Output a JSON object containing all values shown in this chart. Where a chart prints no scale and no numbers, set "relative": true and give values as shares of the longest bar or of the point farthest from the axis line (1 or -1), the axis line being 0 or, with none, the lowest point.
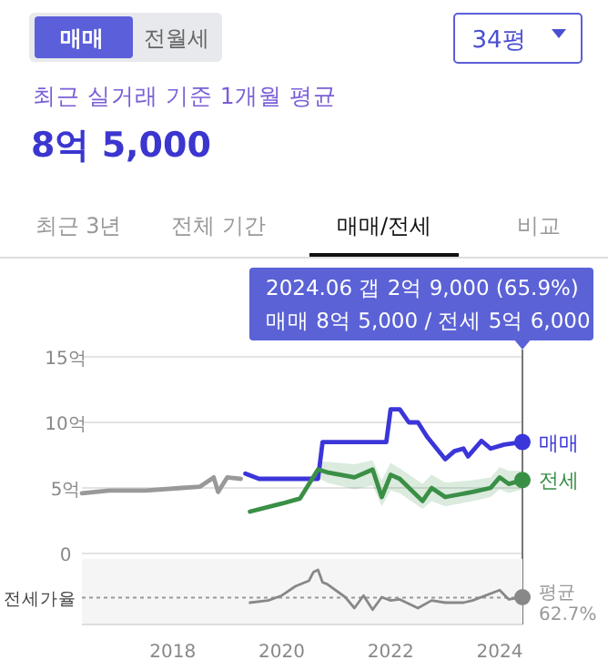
{
  "chart_data": [
    {
      "type": "line",
      "title": "최근 실거래 기준 1개월 평균",
      "subtitle": "8억 5,000",
      "annotations": [
        "매매",
        "전월세",
        "34평",
        "최근 3년",
        "전체 기간",
        "매매/전세",
        "비교",
        "2024.06  갭 2억 9,000 (65.9%)",
        "매매 8억 5,000 / 전세 5억 6,000"
      ],
      "xlim": [
        "2016-05",
        "2024-06"
      ],
      "ylim": [
        0,
        15
      ],
      "yticks": [
        {
          "value": 0,
          "label": "0"
        },
        {
          "value": 5,
          "label": "5억"
        },
        {
          "value": 10,
          "label": "10억"
        },
        {
          "value": 15,
          "label": "15억"
        }
      ],
      "grid": "y",
      "tick_labels": "y",
      "ref_lines": [
        {
          "axis": "x",
          "value": "2024-06",
          "color": "#777777"
        }
      ],
      "series": [
        {
          "color": "#999999",
          "x": [
            "2016-05",
            "2016-11",
            "2017-07",
            "2018-03",
            "2018-07",
            "2018-10",
            "2018-11",
            "2019-01",
            "2019-04"
          ],
          "values": [
            4.6,
            4.8,
            4.8,
            5.0,
            5.1,
            5.8,
            4.7,
            5.8,
            5.7
          ]
        },
        {
          "name": "매매",
          "color": "#3b36d9",
          "x": [
            "2019-05",
            "2019-08",
            "2020-09",
            "2020-10",
            "2021-12",
            "2022-01",
            "2022-03",
            "2022-05",
            "2022-07",
            "2022-09",
            "2023-01",
            "2023-03",
            "2023-05",
            "2023-06",
            "2023-09",
            "2023-11",
            "2024-02",
            "2024-06"
          ],
          "values": [
            6.1,
            5.7,
            5.7,
            8.5,
            8.5,
            11.0,
            11.0,
            10.0,
            10.0,
            8.9,
            7.2,
            7.8,
            8.0,
            7.4,
            8.6,
            8.0,
            8.3,
            8.5
          ]
        },
        {
          "name": "전세",
          "color": "#3a8f47",
          "x": [
            "2019-06",
            "2020-01",
            "2020-05",
            "2020-09",
            "2020-11",
            "2021-05",
            "2021-09",
            "2021-11",
            "2022-01",
            "2022-03",
            "2022-08",
            "2022-10",
            "2023-01",
            "2023-07",
            "2023-11",
            "2024-01",
            "2024-03",
            "2024-06"
          ],
          "values": [
            3.2,
            3.8,
            4.2,
            6.4,
            6.2,
            5.8,
            6.4,
            4.3,
            6.0,
            5.7,
            4.0,
            5.0,
            4.3,
            4.7,
            5.0,
            5.8,
            5.3,
            5.6
          ],
          "lower": [
            null,
            null,
            null,
            5.8,
            5.4,
            4.9,
            5.2,
            3.6,
            4.8,
            4.6,
            3.4,
            4.0,
            3.6,
            4.0,
            4.3,
            4.9,
            4.6,
            4.9
          ],
          "upper": [
            null,
            null,
            null,
            7.0,
            7.0,
            6.8,
            7.1,
            5.6,
            6.9,
            6.5,
            5.3,
            6.0,
            5.4,
            5.6,
            5.8,
            6.6,
            6.3,
            6.3
          ]
        }
      ]
    },
    {
      "type": "line",
      "relative": true,
      "ylabel": "전세가율",
      "xlim": [
        "2016-05",
        "2024-06"
      ],
      "xticks": [
        {
          "value": "2018-01",
          "label": "2018"
        },
        {
          "value": "2020-01",
          "label": "2020"
        },
        {
          "value": "2022-01",
          "label": "2022"
        },
        {
          "value": "2024-01",
          "label": "2024"
        }
      ],
      "tick_labels": "x",
      "ref_lines": [
        {
          "axis": "y",
          "value": 0.49,
          "label": "평균 62.7%",
          "line_style": "dotted",
          "color": "#999999"
        }
      ],
      "series": [
        {
          "color": "#888888",
          "x": [
            "2019-06",
            "2019-10",
            "2020-01",
            "2020-04",
            "2020-07",
            "2020-08",
            "2020-09",
            "2020-10",
            "2020-11",
            "2021-03",
            "2021-05",
            "2021-07",
            "2021-09",
            "2021-11",
            "2022-01",
            "2022-03",
            "2022-07",
            "2022-10",
            "2023-01",
            "2023-05",
            "2023-07",
            "2024-01",
            "2024-03",
            "2024-06"
          ],
          "values": [
            0.4,
            0.44,
            0.53,
            0.7,
            0.8,
            0.96,
            1.0,
            0.77,
            0.74,
            0.5,
            0.3,
            0.53,
            0.27,
            0.5,
            0.44,
            0.46,
            0.3,
            0.44,
            0.4,
            0.4,
            0.44,
            0.63,
            0.46,
            0.5
          ]
        }
      ]
    }
  ]
}
